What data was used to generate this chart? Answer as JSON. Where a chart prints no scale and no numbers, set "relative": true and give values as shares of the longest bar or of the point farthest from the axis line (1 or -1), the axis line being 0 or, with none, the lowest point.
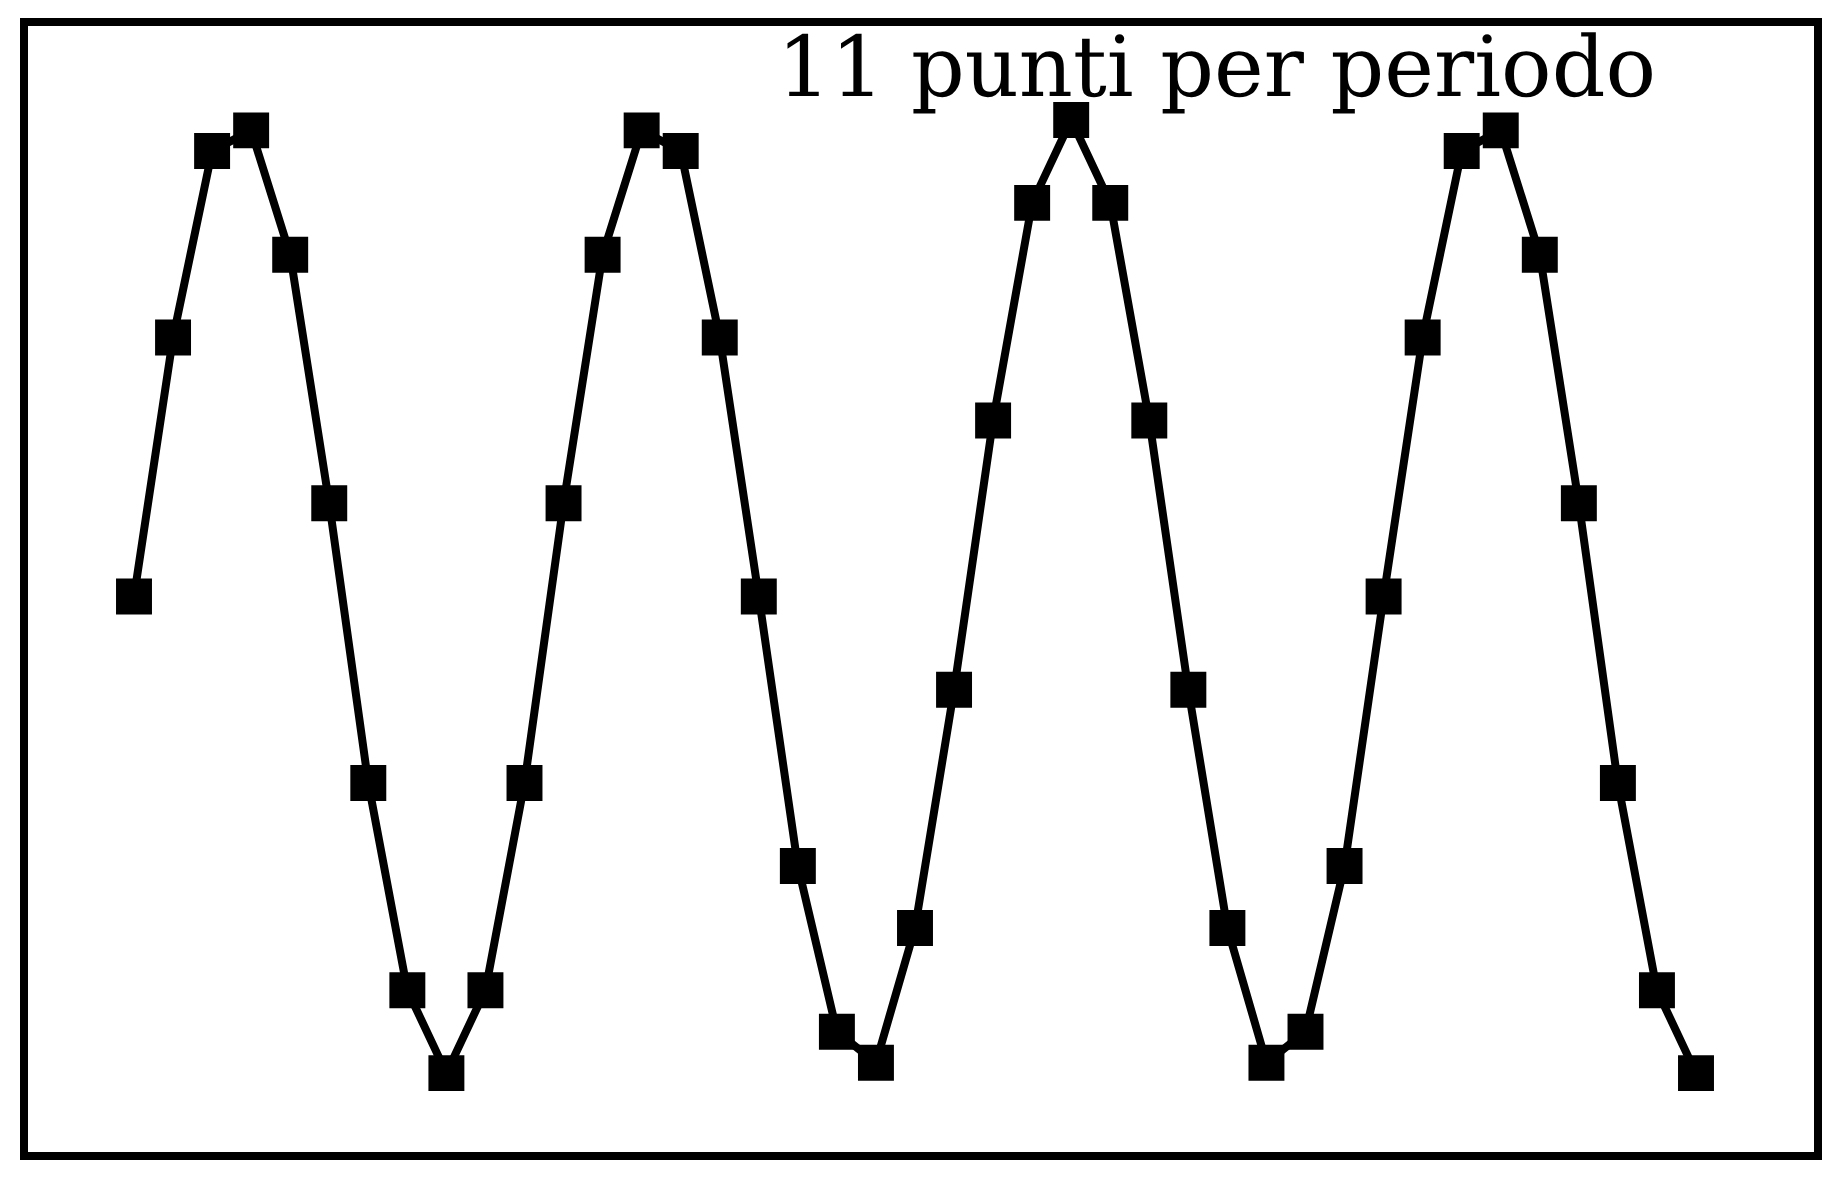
{
  "chart_data": {
    "type": "line",
    "annotations": [
      "11 punti per periodo"
    ],
    "categories": [
      null,
      null,
      null,
      null,
      null,
      null,
      null,
      null,
      null,
      null,
      null,
      null,
      null,
      null,
      null,
      null,
      null,
      null,
      null,
      null,
      null,
      null,
      null,
      null,
      null,
      null,
      null,
      null,
      null,
      null,
      null,
      null,
      null,
      null,
      null,
      null,
      null,
      null,
      null,
      null,
      null
    ],
    "relative": true,
    "marker": "square",
    "series": [
      {
        "color": "#000000",
        "values": [
          0.54,
          0.79,
          0.97,
          0.99,
          0.87,
          0.63,
          0.36,
          0.16,
          0.08,
          0.16,
          0.36,
          0.63,
          0.87,
          0.99,
          0.97,
          0.79,
          0.54,
          0.28,
          0.12,
          0.09,
          0.22,
          0.45,
          0.71,
          0.92,
          1,
          0.92,
          0.71,
          0.45,
          0.22,
          0.09,
          0.12,
          0.28,
          0.54,
          0.79,
          0.97,
          0.99,
          0.87,
          0.63,
          0.36,
          0.16,
          0.08
        ]
      }
    ]
  }
}
